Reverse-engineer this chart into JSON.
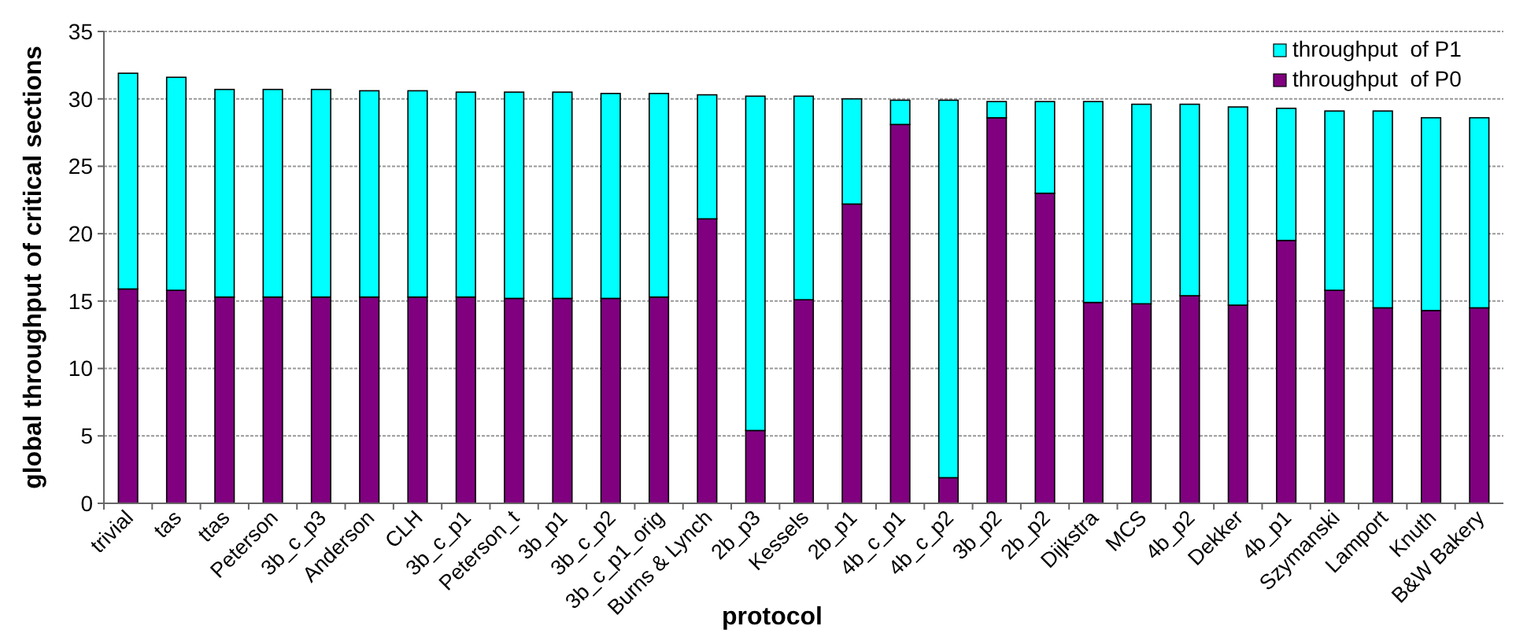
{
  "chart_data": {
    "type": "bar",
    "stacked": true,
    "xlabel": "protocol",
    "ylabel": "global throughput of critical sections",
    "categories": [
      "trivial",
      "tas",
      "ttas",
      "Peterson",
      "3b_c_p3",
      "Anderson",
      "CLH",
      "3b_c_p1",
      "Peterson_t",
      "3b_p1",
      "3b_c_p2",
      "3b_c_p1_orig",
      "Burns & Lynch",
      "2b_p3",
      "Kessels",
      "2b_p1",
      "4b_c_p1",
      "4b_c_p2",
      "3b_p2",
      "2b_p2",
      "Dijkstra",
      "MCS",
      "4b_p2",
      "Dekker",
      "4b_p1",
      "Szymanski",
      "Lamport",
      "Knuth",
      "B&W Bakery"
    ],
    "series": [
      {
        "name": "throughput  of P0",
        "color": "#800080",
        "values": [
          15.9,
          15.8,
          15.3,
          15.3,
          15.3,
          15.3,
          15.3,
          15.3,
          15.2,
          15.2,
          15.2,
          15.3,
          21.1,
          5.4,
          15.1,
          22.2,
          28.1,
          1.9,
          28.6,
          23.0,
          14.9,
          14.8,
          15.4,
          14.7,
          19.5,
          15.8,
          14.5,
          14.3,
          14.5
        ]
      },
      {
        "name": "throughput  of P1",
        "color": "#00ffff",
        "values": [
          16.0,
          15.8,
          15.4,
          15.4,
          15.4,
          15.3,
          15.3,
          15.2,
          15.3,
          15.3,
          15.2,
          15.1,
          9.2,
          24.8,
          15.1,
          7.8,
          1.8,
          28.0,
          1.2,
          6.8,
          14.9,
          14.8,
          14.2,
          14.7,
          9.8,
          13.3,
          14.6,
          14.3,
          14.1
        ]
      }
    ],
    "ylim": [
      0,
      35
    ],
    "yticks": [
      0,
      5,
      10,
      15,
      20,
      25,
      30,
      35
    ],
    "grid": "y",
    "legend": "top right"
  }
}
